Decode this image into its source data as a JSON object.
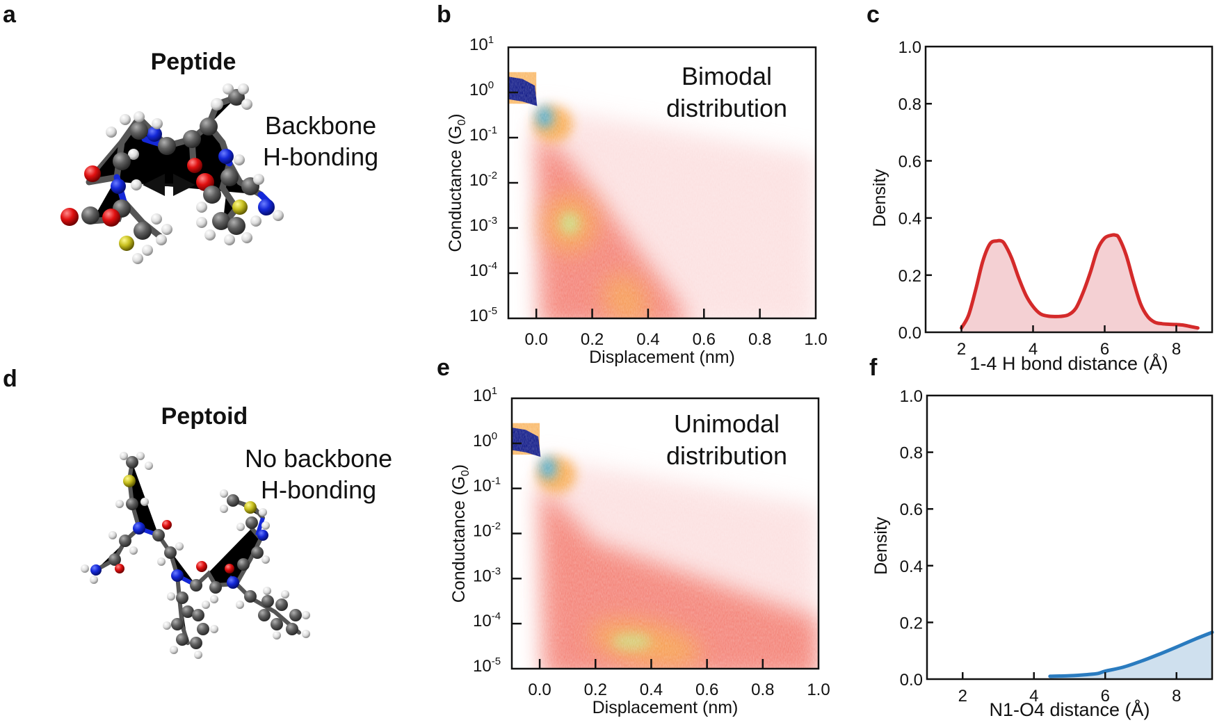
{
  "figure": {
    "panels": {
      "a": {
        "letter": "a",
        "title": "Peptide",
        "annotation_line1": "Backbone",
        "annotation_line2": "H-bonding",
        "molecule": "peptide-ball-and-stick"
      },
      "d": {
        "letter": "d",
        "title": "Peptoid",
        "annotation_line1": "No backbone",
        "annotation_line2": "H-bonding",
        "molecule": "peptoid-ball-and-stick"
      },
      "b": {
        "letter": "b"
      },
      "e": {
        "letter": "e"
      },
      "c": {
        "letter": "c"
      },
      "f": {
        "letter": "f"
      }
    },
    "atom_colors": {
      "carbon": "#5a5a5a",
      "hydrogen": "#e6e6e6",
      "nitrogen": "#1428d8",
      "oxygen": "#e01010",
      "sulfur": "#c8c020"
    }
  },
  "chart_data": [
    {
      "id": "b",
      "type": "heatmap",
      "title": "",
      "annotation": [
        "Bimodal",
        "distribution"
      ],
      "xlabel": "Displacement (nm)",
      "ylabel": "Conductance (G",
      "ylabel_sub": "0",
      "ylabel_end": ")",
      "xlim": [
        -0.1,
        1.0
      ],
      "ylim_log10": [
        -5,
        1
      ],
      "yscale": "log",
      "xticks": [
        0.0,
        0.2,
        0.4,
        0.6,
        0.8,
        1.0
      ],
      "xtick_labels": [
        "0.0",
        "0.2",
        "0.4",
        "0.6",
        "0.8",
        "1.0"
      ],
      "ytick_exponents": [
        1,
        0,
        -1,
        -2,
        -3,
        -4,
        -5
      ],
      "ytick_base": "10",
      "colormap": [
        "#ffffff",
        "#f9c9c9",
        "#f26b5b",
        "#f7a23a",
        "#b8f08a",
        "#2aa8e0",
        "#000a80"
      ],
      "features": [
        {
          "name": "gold-contact-plateau",
          "x_range": [
            -0.1,
            0.0
          ],
          "log10G_center": 0.1,
          "intensity": "max"
        },
        {
          "name": "post-rupture-cloud",
          "x_center": 0.04,
          "log10G_center": -0.7,
          "intensity": "high"
        },
        {
          "name": "high-conductance-molecular-peak",
          "x_center": 0.12,
          "log10G_center": -2.9,
          "intensity": "medium-high"
        },
        {
          "name": "low-conductance-molecular-peak",
          "x_center": 0.33,
          "log10G_center": -4.8,
          "intensity": "medium-high"
        }
      ],
      "grid": false,
      "legend": "none"
    },
    {
      "id": "e",
      "type": "heatmap",
      "title": "",
      "annotation": [
        "Unimodal",
        "distribution"
      ],
      "xlabel": "Displacement (nm)",
      "ylabel": "Conductance (G",
      "ylabel_sub": "0",
      "ylabel_end": ")",
      "xlim": [
        -0.1,
        1.0
      ],
      "ylim_log10": [
        -5,
        1
      ],
      "yscale": "log",
      "xticks": [
        0.0,
        0.2,
        0.4,
        0.6,
        0.8,
        1.0
      ],
      "xtick_labels": [
        "0.0",
        "0.2",
        "0.4",
        "0.6",
        "0.8",
        "1.0"
      ],
      "ytick_exponents": [
        1,
        0,
        -1,
        -2,
        -3,
        -4,
        -5
      ],
      "ytick_base": "10",
      "colormap": [
        "#ffffff",
        "#f9c9c9",
        "#f26b5b",
        "#f7a23a",
        "#b8f08a",
        "#2aa8e0",
        "#000a80"
      ],
      "features": [
        {
          "name": "gold-contact-plateau",
          "x_range": [
            -0.1,
            0.0
          ],
          "log10G_center": 0.1,
          "intensity": "max"
        },
        {
          "name": "post-rupture-cloud",
          "x_center": 0.04,
          "log10G_center": -0.7,
          "intensity": "high"
        },
        {
          "name": "single-molecular-peak",
          "x_center": 0.38,
          "log10G_center": -4.4,
          "intensity": "medium-high"
        }
      ],
      "grid": false,
      "legend": "none"
    },
    {
      "id": "c",
      "type": "area",
      "title": "",
      "xlabel": "1-4 H bond distance (Å)",
      "ylabel": "Density",
      "xlim": [
        1.0,
        9.0
      ],
      "ylim": [
        0.0,
        1.0
      ],
      "xticks": [
        2,
        4,
        6,
        8
      ],
      "xtick_labels": [
        "2",
        "4",
        "6",
        "8"
      ],
      "yticks": [
        0.0,
        0.2,
        0.4,
        0.6,
        0.8,
        1.0
      ],
      "ytick_labels": [
        "0.0",
        "0.2",
        "0.4",
        "0.6",
        "0.8",
        "1.0"
      ],
      "line_color": "#d42a2a",
      "fill_color": "#f4d0d3",
      "series": [
        {
          "name": "peptide",
          "x": [
            2.0,
            2.2,
            2.4,
            2.6,
            2.8,
            3.0,
            3.1,
            3.2,
            3.4,
            3.6,
            3.8,
            4.0,
            4.2,
            4.4,
            4.6,
            4.8,
            5.0,
            5.2,
            5.4,
            5.6,
            5.8,
            6.0,
            6.2,
            6.3,
            6.4,
            6.6,
            6.8,
            7.0,
            7.2,
            7.4,
            7.6,
            7.8,
            8.0,
            8.2,
            8.4,
            8.6
          ],
          "y": [
            0.015,
            0.06,
            0.15,
            0.25,
            0.31,
            0.32,
            0.32,
            0.31,
            0.26,
            0.19,
            0.13,
            0.09,
            0.065,
            0.057,
            0.055,
            0.056,
            0.062,
            0.085,
            0.14,
            0.21,
            0.29,
            0.33,
            0.34,
            0.34,
            0.33,
            0.27,
            0.18,
            0.1,
            0.055,
            0.035,
            0.03,
            0.028,
            0.027,
            0.025,
            0.02,
            0.015
          ]
        }
      ],
      "grid": false,
      "legend": "none"
    },
    {
      "id": "f",
      "type": "area",
      "title": "",
      "xlabel": "N1-O4 distance (Å)",
      "ylabel": "Density",
      "xlim": [
        1.0,
        9.0
      ],
      "ylim": [
        0.0,
        1.0
      ],
      "xticks": [
        2,
        4,
        6,
        8
      ],
      "xtick_labels": [
        "2",
        "4",
        "6",
        "8"
      ],
      "yticks": [
        0.0,
        0.2,
        0.4,
        0.6,
        0.8,
        1.0
      ],
      "ytick_labels": [
        "0.0",
        "0.2",
        "0.4",
        "0.6",
        "0.8",
        "1.0"
      ],
      "line_color": "#2a7bbf",
      "fill_color": "#cfe0ee",
      "series": [
        {
          "name": "peptoid",
          "x": [
            4.45,
            5.0,
            5.5,
            5.8,
            6.0,
            6.5,
            7.0,
            7.5,
            8.0,
            8.5,
            9.0
          ],
          "y": [
            0.01,
            0.012,
            0.016,
            0.02,
            0.028,
            0.042,
            0.063,
            0.087,
            0.113,
            0.14,
            0.165
          ]
        }
      ],
      "grid": false,
      "legend": "none"
    }
  ]
}
